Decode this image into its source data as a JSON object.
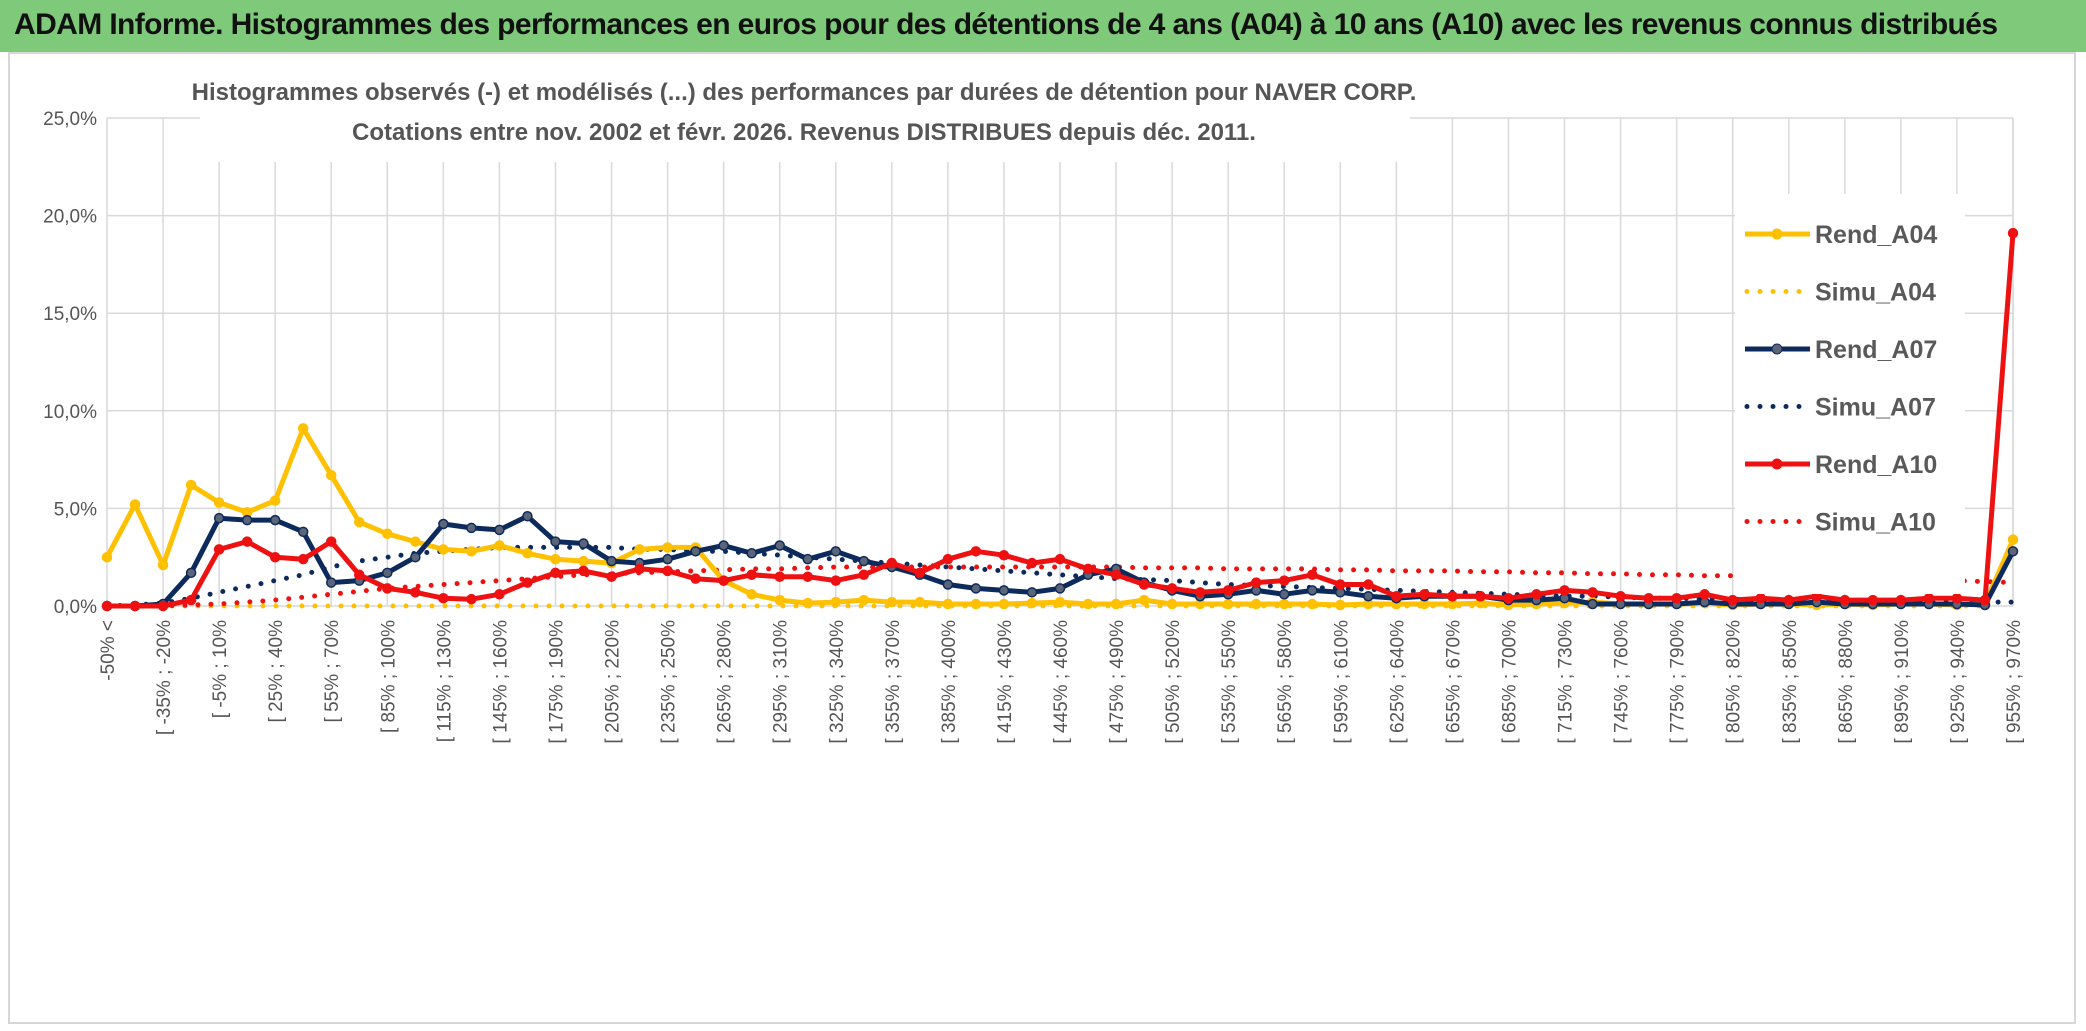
{
  "header": {
    "title": "ADAM Informe. Histogrammes des performances en euros pour des détentions de 4 ans (A04) à 10 ans (A10) avec les revenus connus distribués"
  },
  "chart_data": {
    "type": "line",
    "title": "Histogrammes observés (-) et modélisés (...) des performances par durées de détention pour NAVER CORP.",
    "subtitle": "Cotations entre nov. 2002 et févr. 2026. Revenus DISTRIBUES depuis déc. 2011.",
    "xlabel": "",
    "ylabel": "",
    "ylim": [
      0,
      25
    ],
    "yticks": [
      "0,0%",
      "5,0%",
      "10,0%",
      "15,0%",
      "20,0%",
      "25,0%"
    ],
    "grid": true,
    "legend_position": "right",
    "x_tick_labels": [
      "-50% <",
      "[ -35% ; -20%",
      "[ -5% ; 10%",
      "[ 25% ; 40%",
      "[ 55% ; 70%",
      "[ 85% ; 100%",
      "[ 115% ; 130%",
      "[ 145% ; 160%",
      "[ 175% ; 190%",
      "[ 205% ; 220%",
      "[ 235% ; 250%",
      "[ 265% ; 280%",
      "[ 295% ; 310%",
      "[ 325% ; 340%",
      "[ 355% ; 370%",
      "[ 385% ; 400%",
      "[ 415% ; 430%",
      "[ 445% ; 460%",
      "[ 475% ; 490%",
      "[ 505% ; 520%",
      "[ 535% ; 550%",
      "[ 565% ; 580%",
      "[ 595% ; 610%",
      "[ 625% ; 640%",
      "[ 655% ; 670%",
      "[ 685% ; 700%",
      "[ 715% ; 730%",
      "[ 745% ; 760%",
      "[ 775% ; 790%",
      "[ 805% ; 820%",
      "[ 835% ; 850%",
      "[ 865% ; 880%",
      "[ 895% ; 910%",
      "[ 925% ; 940%",
      "[ 955% ; 970%"
    ],
    "n_categories": 69,
    "series": [
      {
        "name": "Rend_A04",
        "style": "solid",
        "color": "#ffc000",
        "values": [
          2.5,
          5.2,
          2.1,
          6.2,
          5.3,
          4.8,
          5.4,
          9.1,
          6.7,
          4.3,
          3.7,
          3.3,
          2.9,
          2.8,
          3.1,
          2.7,
          2.4,
          2.3,
          2.2,
          2.9,
          3.0,
          3.0,
          1.3,
          0.6,
          0.3,
          0.15,
          0.2,
          0.3,
          0.2,
          0.2,
          0.1,
          0.1,
          0.1,
          0.15,
          0.2,
          0.1,
          0.1,
          0.3,
          0.1,
          0.1,
          0.1,
          0.1,
          0.1,
          0.1,
          0.05,
          0.1,
          0.1,
          0.1,
          0.1,
          0.15,
          0.05,
          0.1,
          0.15,
          0.2,
          0.1,
          0.1,
          0.1,
          0.15,
          0.05,
          0.1,
          0.1,
          0.05,
          0.1,
          0.05,
          0.1,
          0.1,
          0.05,
          0.1,
          3.4
        ]
      },
      {
        "name": "Simu_A04",
        "style": "dotted",
        "color": "#ffc000",
        "values": [
          0,
          0,
          0,
          0,
          0,
          0,
          0,
          0,
          0,
          0,
          0,
          0,
          0,
          0,
          0,
          0,
          0,
          0,
          0,
          0,
          0,
          0,
          0,
          0,
          0,
          0,
          0,
          0,
          0,
          0,
          0,
          0,
          0,
          0,
          0,
          0,
          0,
          0,
          0,
          0,
          0,
          0,
          0,
          0,
          0,
          0,
          0,
          0,
          0,
          0,
          0,
          0,
          0,
          0,
          0,
          0,
          0,
          0,
          0,
          0,
          0,
          0,
          0,
          0,
          0,
          0,
          0,
          0,
          3.0
        ]
      },
      {
        "name": "Rend_A07",
        "style": "solid",
        "color": "#0d2a5c",
        "values": [
          0,
          0,
          0.1,
          1.7,
          4.5,
          4.4,
          4.4,
          3.8,
          1.2,
          1.3,
          1.7,
          2.5,
          4.2,
          4.0,
          3.9,
          4.6,
          3.3,
          3.2,
          2.3,
          2.2,
          2.4,
          2.8,
          3.1,
          2.7,
          3.1,
          2.4,
          2.8,
          2.3,
          2.0,
          1.6,
          1.1,
          0.9,
          0.8,
          0.7,
          0.9,
          1.6,
          1.9,
          1.2,
          0.8,
          0.5,
          0.6,
          0.8,
          0.6,
          0.8,
          0.7,
          0.5,
          0.4,
          0.5,
          0.5,
          0.5,
          0.3,
          0.3,
          0.4,
          0.1,
          0.1,
          0.1,
          0.1,
          0.2,
          0.1,
          0.1,
          0.1,
          0.2,
          0.1,
          0.1,
          0.1,
          0.1,
          0.1,
          0.05,
          2.8
        ]
      },
      {
        "name": "Simu_A07",
        "style": "dotted",
        "color": "#0d2a5c",
        "values": [
          0,
          0.05,
          0.15,
          0.4,
          0.7,
          1.0,
          1.3,
          1.6,
          2.0,
          2.3,
          2.5,
          2.7,
          2.8,
          2.9,
          3.0,
          3.0,
          3.0,
          3.0,
          3.0,
          2.9,
          2.9,
          2.8,
          2.8,
          2.7,
          2.6,
          2.5,
          2.4,
          2.3,
          2.2,
          2.1,
          2.0,
          1.9,
          1.8,
          1.7,
          1.6,
          1.5,
          1.4,
          1.35,
          1.3,
          1.2,
          1.1,
          1.05,
          1.0,
          0.95,
          0.9,
          0.85,
          0.8,
          0.75,
          0.7,
          0.65,
          0.6,
          0.55,
          0.5,
          0.5,
          0.45,
          0.4,
          0.4,
          0.35,
          0.35,
          0.3,
          0.3,
          0.3,
          0.25,
          0.25,
          0.2,
          0.2,
          0.2,
          0.2,
          0.2
        ]
      },
      {
        "name": "Rend_A10",
        "style": "solid",
        "color": "#ee1111",
        "values": [
          0,
          0,
          0,
          0.3,
          2.9,
          3.3,
          2.5,
          2.4,
          3.3,
          1.6,
          0.9,
          0.7,
          0.4,
          0.35,
          0.6,
          1.2,
          1.7,
          1.8,
          1.5,
          1.9,
          1.8,
          1.4,
          1.3,
          1.6,
          1.5,
          1.5,
          1.3,
          1.6,
          2.2,
          1.7,
          2.4,
          2.8,
          2.6,
          2.2,
          2.4,
          1.9,
          1.6,
          1.1,
          0.9,
          0.7,
          0.8,
          1.2,
          1.3,
          1.6,
          1.1,
          1.1,
          0.5,
          0.6,
          0.5,
          0.5,
          0.4,
          0.6,
          0.8,
          0.7,
          0.5,
          0.4,
          0.4,
          0.6,
          0.3,
          0.4,
          0.3,
          0.5,
          0.3,
          0.3,
          0.3,
          0.4,
          0.4,
          0.3,
          19.1
        ]
      },
      {
        "name": "Simu_A10",
        "style": "dotted",
        "color": "#ee1111",
        "values": [
          0,
          0,
          0,
          0.05,
          0.1,
          0.2,
          0.3,
          0.45,
          0.6,
          0.75,
          0.9,
          1.0,
          1.1,
          1.2,
          1.3,
          1.4,
          1.5,
          1.6,
          1.65,
          1.7,
          1.75,
          1.8,
          1.85,
          1.9,
          1.9,
          1.95,
          2.0,
          2.0,
          2.0,
          2.0,
          2.0,
          2.0,
          2.0,
          2.0,
          2.0,
          2.0,
          2.0,
          1.95,
          1.95,
          1.95,
          1.9,
          1.9,
          1.9,
          1.9,
          1.85,
          1.85,
          1.8,
          1.8,
          1.8,
          1.75,
          1.75,
          1.7,
          1.7,
          1.65,
          1.65,
          1.6,
          1.6,
          1.55,
          1.55,
          1.5,
          1.5,
          1.45,
          1.4,
          1.4,
          1.35,
          1.3,
          1.3,
          1.25,
          1.2
        ]
      }
    ]
  }
}
